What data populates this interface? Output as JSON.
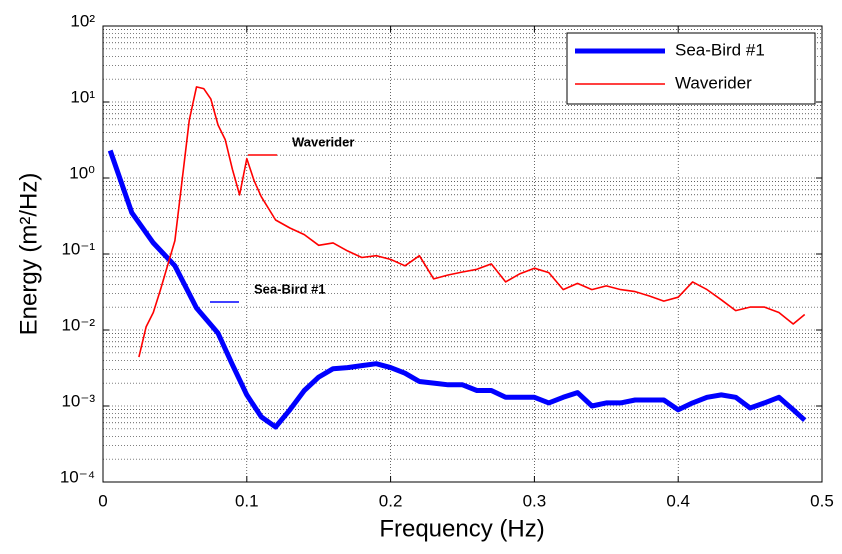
{
  "chart_data": {
    "type": "line",
    "xlabel": "Frequency (Hz)",
    "ylabel": "Energy (m²/Hz)",
    "log_y": true,
    "grid": true,
    "legend_position": "upper right",
    "xlim": [
      0,
      0.5
    ],
    "xticks": [
      0,
      0.1,
      0.2,
      0.3,
      0.4,
      0.5
    ],
    "ylim": [
      0.0001,
      100
    ],
    "yticks": [
      {
        "value": 0.0001,
        "label": "10⁻⁴"
      },
      {
        "value": 0.001,
        "label": "10⁻³"
      },
      {
        "value": 0.01,
        "label": "10⁻²"
      },
      {
        "value": 0.1,
        "label": "10⁻¹"
      },
      {
        "value": 1,
        "label": "10⁰"
      },
      {
        "value": 10,
        "label": "10¹"
      },
      {
        "value": 100,
        "label": "10²"
      }
    ],
    "series": [
      {
        "name": "Sea-Bird #1",
        "color": "#0000ff",
        "width": 5,
        "x": [
          0.005,
          0.02,
          0.035,
          0.05,
          0.065,
          0.08,
          0.09,
          0.1,
          0.11,
          0.12,
          0.13,
          0.14,
          0.15,
          0.16,
          0.17,
          0.18,
          0.19,
          0.2,
          0.21,
          0.22,
          0.23,
          0.24,
          0.25,
          0.26,
          0.27,
          0.28,
          0.29,
          0.3,
          0.31,
          0.32,
          0.33,
          0.34,
          0.35,
          0.36,
          0.37,
          0.38,
          0.39,
          0.4,
          0.41,
          0.42,
          0.43,
          0.44,
          0.45,
          0.46,
          0.47,
          0.48,
          0.488
        ],
        "values": [
          2.3,
          0.35,
          0.14,
          0.07,
          0.0195,
          0.0091,
          0.0035,
          0.0014,
          0.00072,
          0.00053,
          0.00089,
          0.0016,
          0.0024,
          0.0031,
          0.0032,
          0.0034,
          0.0036,
          0.0032,
          0.0027,
          0.0021,
          0.002,
          0.0019,
          0.0019,
          0.0016,
          0.0016,
          0.0013,
          0.0013,
          0.0013,
          0.0011,
          0.0013,
          0.0015,
          0.001,
          0.0011,
          0.0011,
          0.0012,
          0.0012,
          0.0012,
          0.00089,
          0.0011,
          0.0013,
          0.0014,
          0.0013,
          0.00094,
          0.0011,
          0.0013,
          0.00089,
          0.00065
        ]
      },
      {
        "name": "Waverider",
        "color": "#ff0000",
        "width": 1.6,
        "x": [
          0.025,
          0.03,
          0.035,
          0.04,
          0.05,
          0.055,
          0.06,
          0.065,
          0.07,
          0.075,
          0.08,
          0.085,
          0.09,
          0.095,
          0.1,
          0.105,
          0.11,
          0.12,
          0.13,
          0.14,
          0.15,
          0.16,
          0.17,
          0.18,
          0.19,
          0.2,
          0.21,
          0.22,
          0.23,
          0.24,
          0.25,
          0.26,
          0.27,
          0.28,
          0.29,
          0.3,
          0.31,
          0.32,
          0.33,
          0.34,
          0.35,
          0.36,
          0.37,
          0.38,
          0.39,
          0.4,
          0.41,
          0.42,
          0.43,
          0.44,
          0.45,
          0.46,
          0.47,
          0.48,
          0.488
        ],
        "values": [
          0.0044,
          0.011,
          0.017,
          0.034,
          0.15,
          0.93,
          5.8,
          15.8,
          15,
          11,
          5,
          3.2,
          1.3,
          0.6,
          1.8,
          0.93,
          0.57,
          0.28,
          0.22,
          0.18,
          0.13,
          0.14,
          0.11,
          0.09,
          0.095,
          0.085,
          0.07,
          0.095,
          0.047,
          0.053,
          0.058,
          0.063,
          0.074,
          0.043,
          0.055,
          0.065,
          0.057,
          0.034,
          0.041,
          0.034,
          0.038,
          0.034,
          0.032,
          0.028,
          0.024,
          0.027,
          0.043,
          0.034,
          0.025,
          0.018,
          0.02,
          0.02,
          0.017,
          0.012,
          0.016
        ]
      }
    ],
    "annotations": [
      {
        "text": "Waverider",
        "color": "#ff0000"
      },
      {
        "text": "Sea-Bird #1",
        "color": "#0000ff"
      }
    ]
  }
}
